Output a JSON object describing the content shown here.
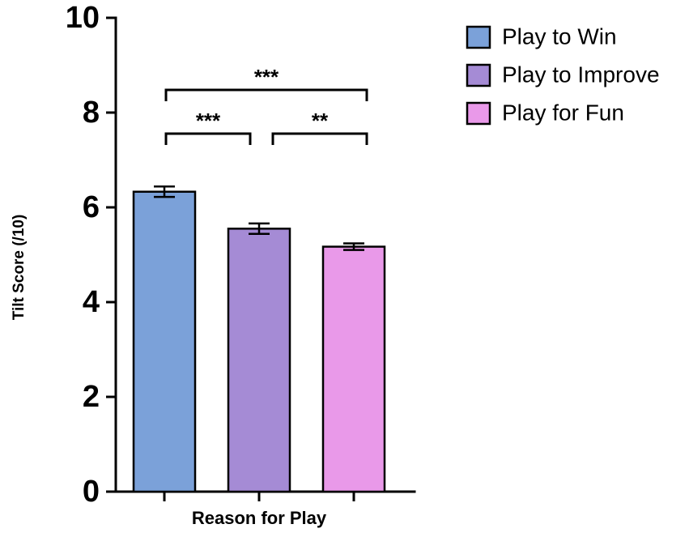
{
  "chart_data": {
    "type": "bar",
    "y_label": "Tilt Score (/10)",
    "x_label": "Reason for Play",
    "categories": [
      "Play to Win",
      "Play to Improve",
      "Play for Fun"
    ],
    "values": [
      6.33,
      5.55,
      5.17
    ],
    "errors": [
      0.11,
      0.11,
      0.07
    ],
    "colors": [
      "#7ba1d9",
      "#a58bd5",
      "#e999e9"
    ],
    "ylim": [
      0,
      10
    ],
    "yticks": [
      0,
      2,
      4,
      6,
      8,
      10
    ],
    "legend": "top-right",
    "comparisons": [
      {
        "groups": [
          "Play to Win",
          "Play to Improve"
        ],
        "label": "***"
      },
      {
        "groups": [
          "Play to Improve",
          "Play for Fun"
        ],
        "label": "**"
      },
      {
        "groups": [
          "Play to Win",
          "Play for Fun"
        ],
        "label": "***"
      }
    ]
  }
}
